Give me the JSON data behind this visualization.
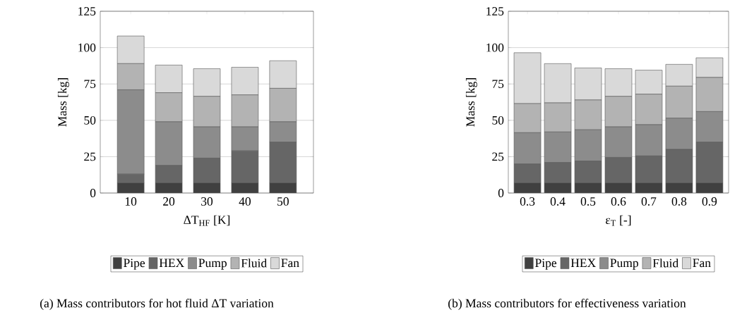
{
  "chart_data": [
    {
      "type": "bar",
      "stacked": true,
      "xlabel": "ΔT$_{HF}$ [K]",
      "ylabel": "Mass [kg]",
      "categories": [
        "10",
        "20",
        "30",
        "40",
        "50"
      ],
      "ylim": [
        0,
        125
      ],
      "yticks": [
        0,
        25,
        50,
        75,
        100,
        125
      ],
      "grid": "y",
      "legend": "bottom",
      "series": [
        {
          "name": "Pipe",
          "color": "#404040",
          "values": [
            7,
            7,
            7,
            7,
            7
          ]
        },
        {
          "name": "HEX",
          "color": "#666666",
          "values": [
            6,
            12,
            17,
            22,
            28
          ]
        },
        {
          "name": "Pump",
          "color": "#8c8c8c",
          "values": [
            58,
            30,
            21.5,
            16.5,
            14
          ]
        },
        {
          "name": "Fluid",
          "color": "#b3b3b3",
          "values": [
            18,
            20,
            21,
            22,
            23
          ]
        },
        {
          "name": "Fan",
          "color": "#d9d9d9",
          "values": [
            19,
            19,
            19,
            19,
            19
          ]
        }
      ],
      "annotations": [
        "(a) Mass contributors for hot fluid ΔT variation"
      ]
    },
    {
      "type": "bar",
      "stacked": true,
      "xlabel": "ε$_{T}$ [-]",
      "ylabel": "Mass [kg]",
      "categories": [
        "0.3",
        "0.4",
        "0.5",
        "0.6",
        "0.7",
        "0.8",
        "0.9"
      ],
      "ylim": [
        0,
        125
      ],
      "yticks": [
        0,
        25,
        50,
        75,
        100,
        125
      ],
      "grid": "y",
      "legend": "bottom",
      "series": [
        {
          "name": "Pipe",
          "color": "#404040",
          "values": [
            7,
            7,
            7,
            7,
            7,
            7,
            7
          ]
        },
        {
          "name": "HEX",
          "color": "#666666",
          "values": [
            13,
            14,
            15,
            17.5,
            18.5,
            23,
            28
          ]
        },
        {
          "name": "Pump",
          "color": "#8c8c8c",
          "values": [
            21.5,
            21,
            21.5,
            21,
            21.5,
            21.5,
            21
          ]
        },
        {
          "name": "Fluid",
          "color": "#b3b3b3",
          "values": [
            20,
            20,
            20.5,
            21,
            21,
            22,
            23.5
          ]
        },
        {
          "name": "Fan",
          "color": "#d9d9d9",
          "values": [
            35,
            27,
            22,
            19,
            16.5,
            15,
            13.5
          ]
        }
      ],
      "annotations": [
        "(b) Mass contributors for effectiveness variation"
      ]
    }
  ]
}
